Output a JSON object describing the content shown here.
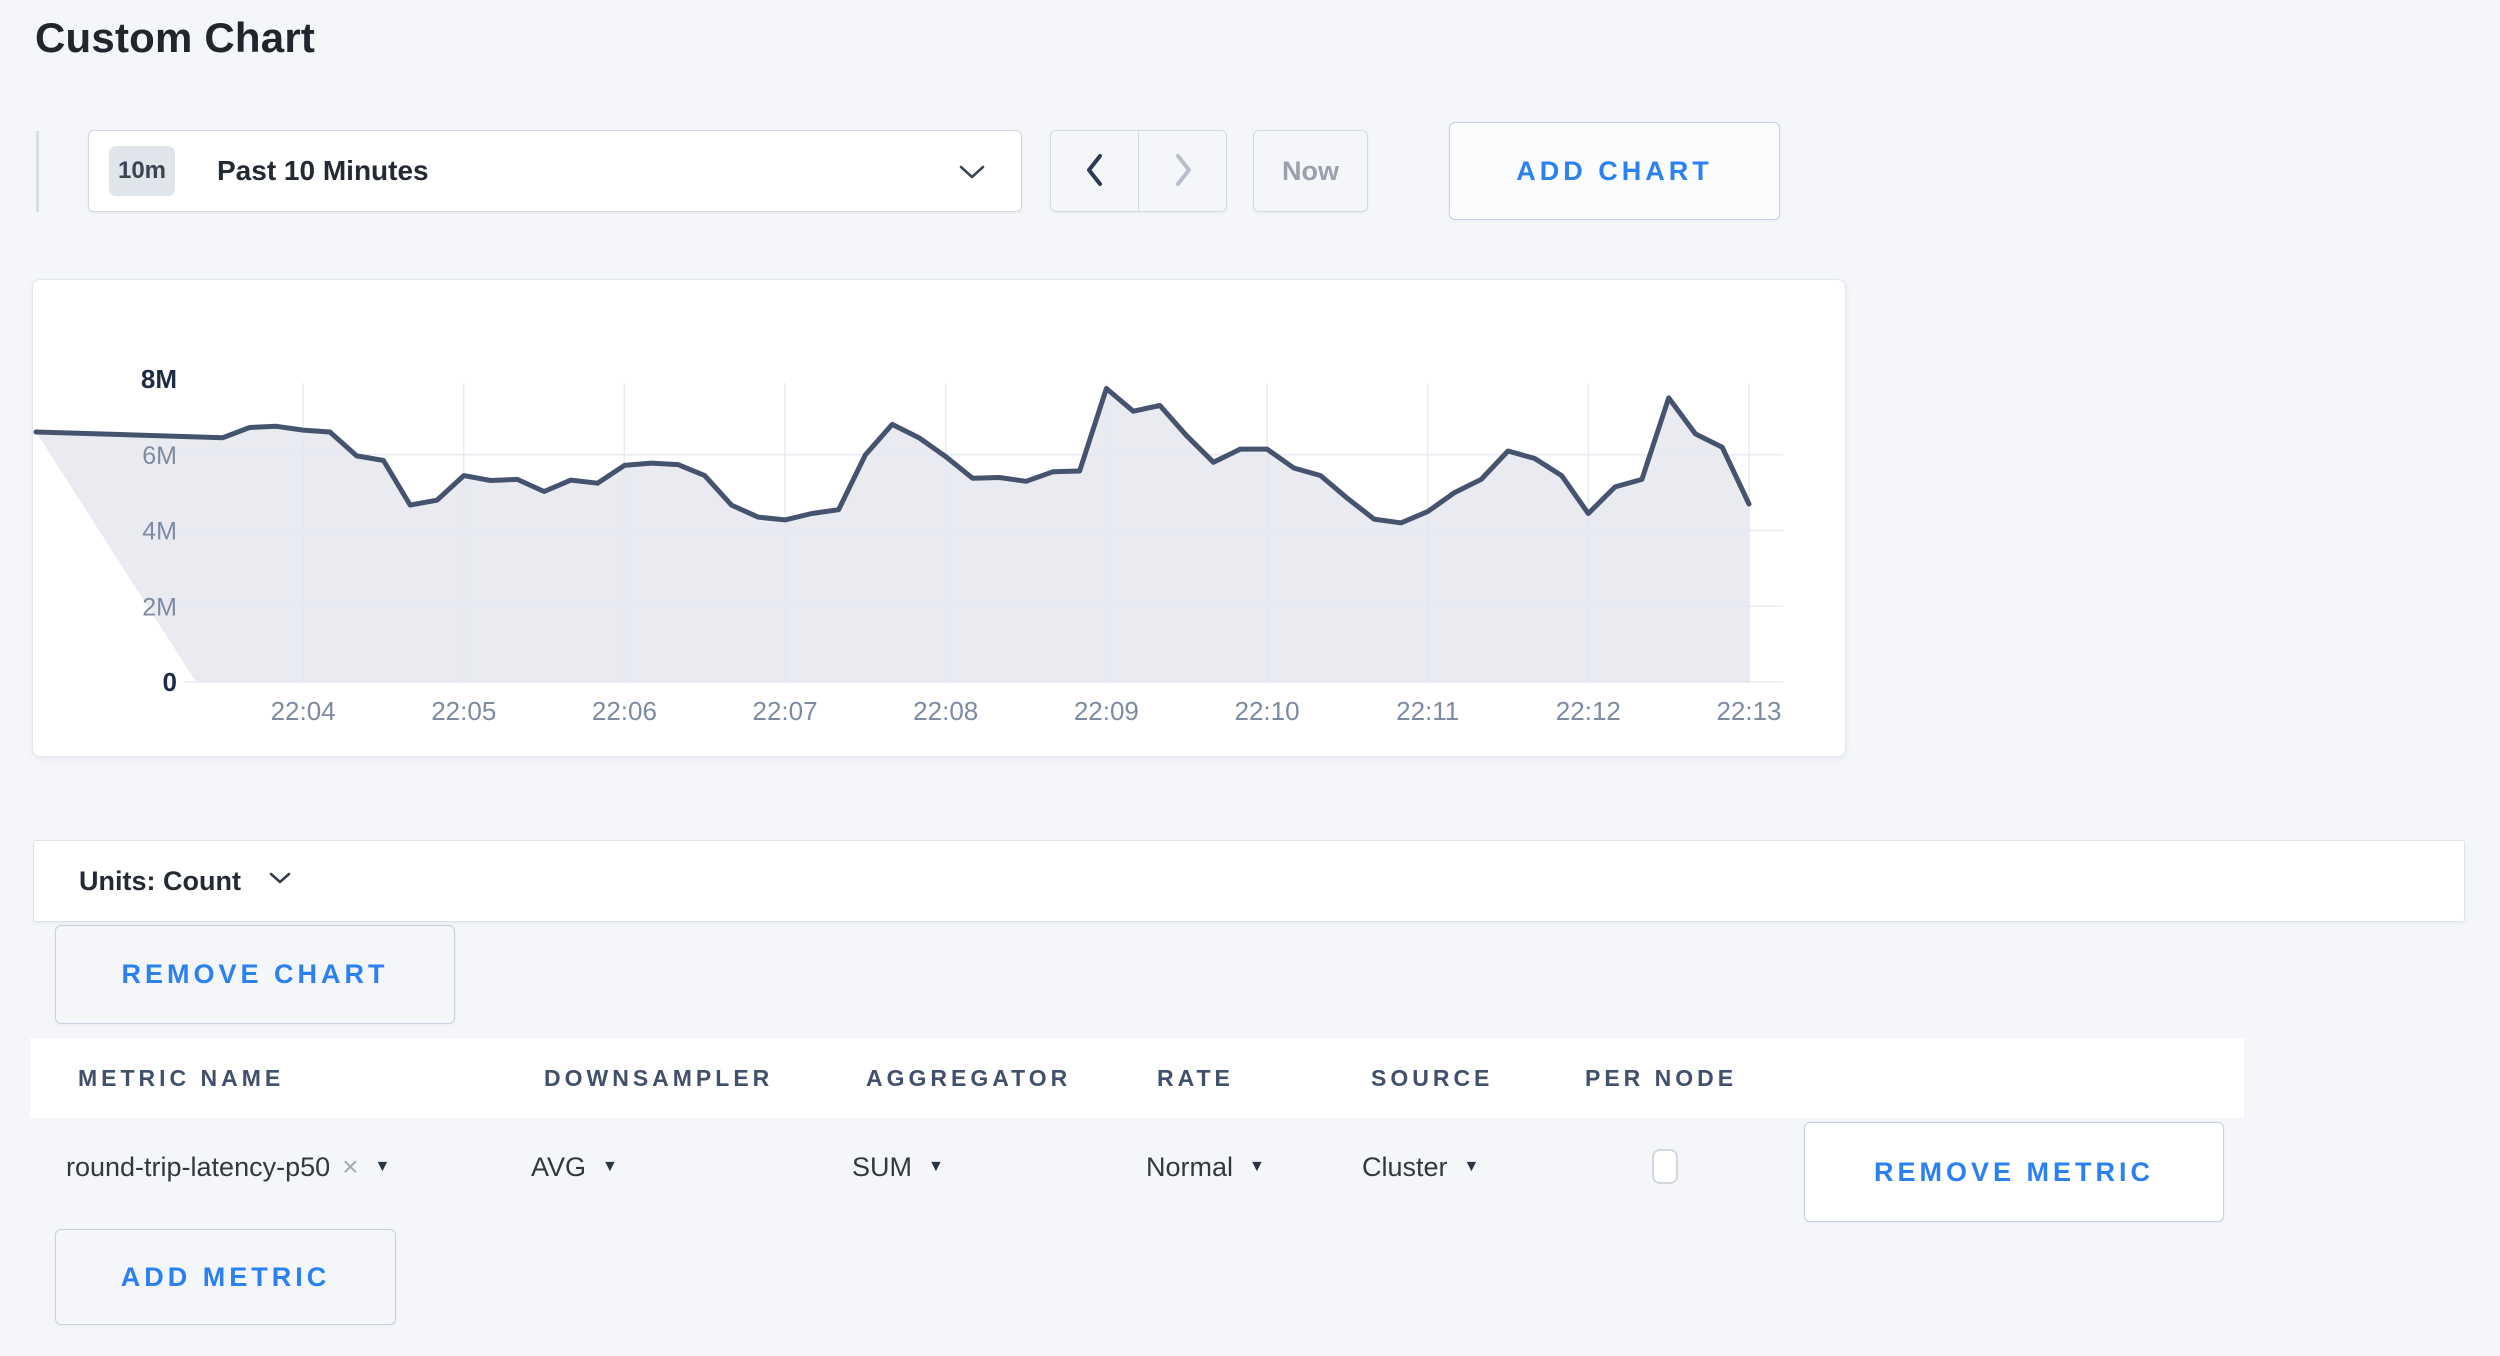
{
  "page": {
    "title": "Custom Chart"
  },
  "toolbar": {
    "time_badge": "10m",
    "time_label": "Past 10 Minutes",
    "now_label": "Now",
    "add_chart_label": "ADD CHART"
  },
  "glyphs": {
    "caret_down": "▼",
    "clear_x": "×"
  },
  "chart_data": {
    "type": "area",
    "title": "",
    "ylabel": "Count",
    "ylim": [
      0,
      8000000
    ],
    "grid": true,
    "y_ticks": [
      {
        "value": 8,
        "label": "8M",
        "emphasis": true
      },
      {
        "value": 6,
        "label": "6M",
        "emphasis": false
      },
      {
        "value": 4,
        "label": "4M",
        "emphasis": false
      },
      {
        "value": 2,
        "label": "2M",
        "emphasis": false
      },
      {
        "value": 0,
        "label": "0",
        "emphasis": true
      }
    ],
    "x_ticks": [
      "22:04",
      "22:05",
      "22:06",
      "22:07",
      "22:08",
      "22:09",
      "22:10",
      "22:11",
      "22:12",
      "22:13"
    ],
    "x_start": "22:03:20",
    "x_interval_seconds": 10,
    "series": [
      {
        "name": "round-trip-latency-p50",
        "values_millions": [
          6.6,
          6.45,
          6.72,
          6.75,
          6.65,
          6.6,
          5.97,
          5.85,
          4.67,
          4.8,
          5.45,
          5.32,
          5.35,
          5.03,
          5.33,
          5.25,
          5.72,
          5.78,
          5.74,
          5.45,
          4.67,
          4.35,
          4.28,
          4.45,
          4.55,
          6.0,
          6.8,
          6.45,
          5.95,
          5.38,
          5.4,
          5.3,
          5.55,
          5.57,
          7.75,
          7.15,
          7.3,
          6.5,
          5.8,
          6.15,
          6.15,
          5.65,
          5.45,
          4.85,
          4.3,
          4.2,
          4.5,
          5.0,
          5.35,
          6.1,
          5.9,
          5.45,
          4.45,
          5.15,
          5.35,
          7.5,
          6.55,
          6.2,
          4.7
        ]
      }
    ]
  },
  "units_bar": {
    "label": "Units: Count"
  },
  "remove_chart_label": "REMOVE CHART",
  "metrics_table": {
    "headers": [
      "METRIC NAME",
      "DOWNSAMPLER",
      "AGGREGATOR",
      "RATE",
      "SOURCE",
      "PER NODE"
    ],
    "rows": [
      {
        "metric_name": "round-trip-latency-p50",
        "downsampler": "AVG",
        "aggregator": "SUM",
        "rate": "Normal",
        "source": "Cluster",
        "per_node_checked": false,
        "remove_metric_label": "REMOVE METRIC"
      }
    ]
  },
  "add_metric_label": "ADD METRIC",
  "colors": {
    "accent_blue": "#2b80f2",
    "chart_line": "#46536e",
    "chart_fill": "#e9ebf1",
    "grid_line": "#e4e8f1",
    "page_bg": "#f4f6fa"
  }
}
